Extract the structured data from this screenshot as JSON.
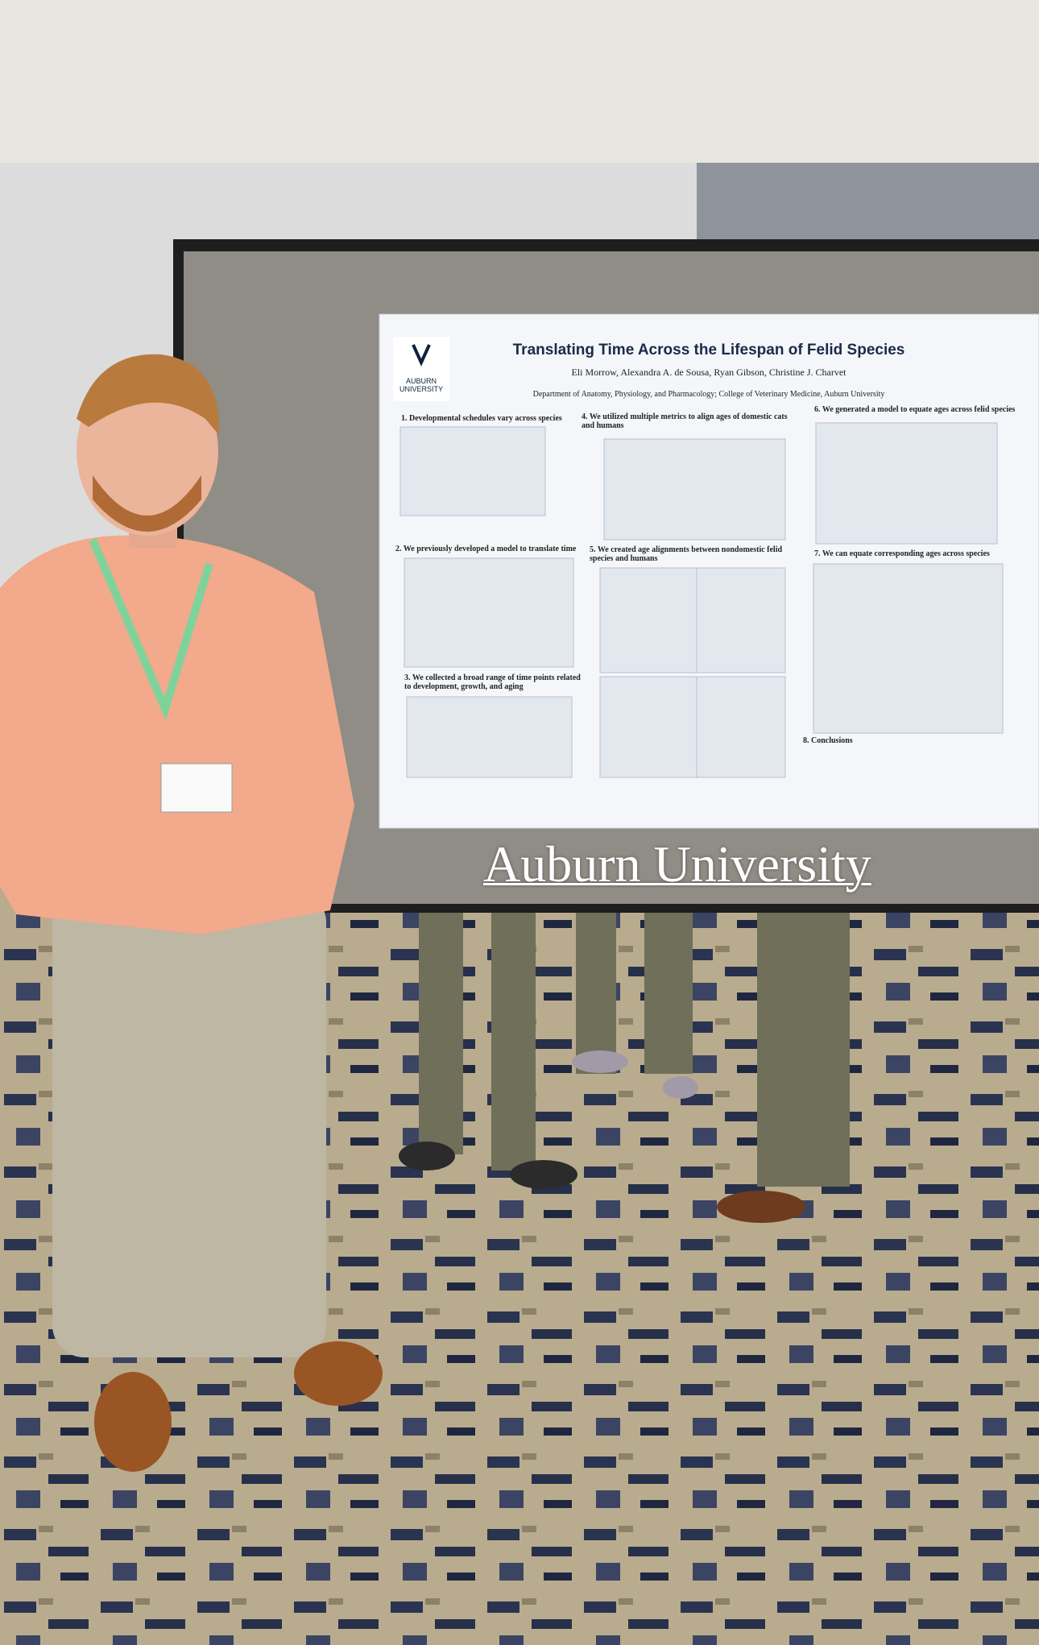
{
  "caption": "Auburn University",
  "poster": {
    "logo": "AUBURN UNIVERSITY",
    "title": "Translating Time Across the Lifespan of Felid Species",
    "authors": "Eli Morrow, Alexandra A. de Sousa, Ryan Gibson, Christine J. Charvet",
    "affiliation": "Department of Anatomy, Physiology, and Pharmacology; College of Veterinary Medicine, Auburn University",
    "sections": [
      "1. Developmental schedules vary across species",
      "2. We previously developed a model to translate time",
      "3. We collected a broad range of time points related to development, growth, and aging",
      "4. We utilized multiple metrics to align ages of domestic cats and humans",
      "5. We created age alignments between nondomestic felid species and humans",
      "6. We generated a model to equate ages across felid species",
      "7. We can equate corresponding ages across species",
      "8. Conclusions"
    ]
  }
}
